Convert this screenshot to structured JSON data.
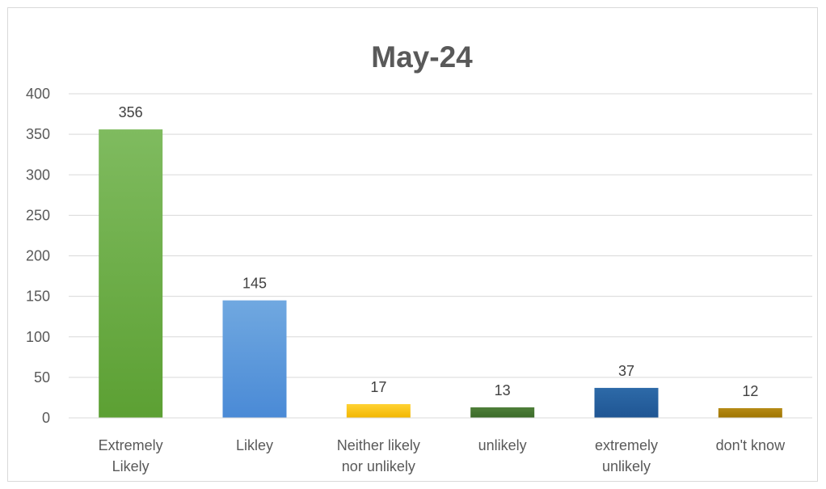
{
  "chart_data": {
    "type": "bar",
    "title": "May-24",
    "xlabel": "",
    "ylabel": "",
    "ylim": [
      0,
      400
    ],
    "yticks": [
      0,
      50,
      100,
      150,
      200,
      250,
      300,
      350,
      400
    ],
    "grid": true,
    "legend": "none",
    "categories": [
      [
        "Extremely",
        "Likely"
      ],
      [
        "Likley"
      ],
      [
        "Neither likely",
        "nor unlikely"
      ],
      [
        "unlikely"
      ],
      [
        "extremely",
        "unlikely"
      ],
      [
        "don't know"
      ]
    ],
    "values": [
      356,
      145,
      17,
      13,
      37,
      12
    ],
    "colors": [
      [
        "#7fbb5f",
        "#5ca033"
      ],
      [
        "#70a8e0",
        "#4a8ad6"
      ],
      [
        "#ffd233",
        "#f2b600"
      ],
      [
        "#4f7f3a",
        "#3a6a28"
      ],
      [
        "#2d6aa8",
        "#1f5593"
      ],
      [
        "#b68b17",
        "#9e7400"
      ]
    ]
  }
}
